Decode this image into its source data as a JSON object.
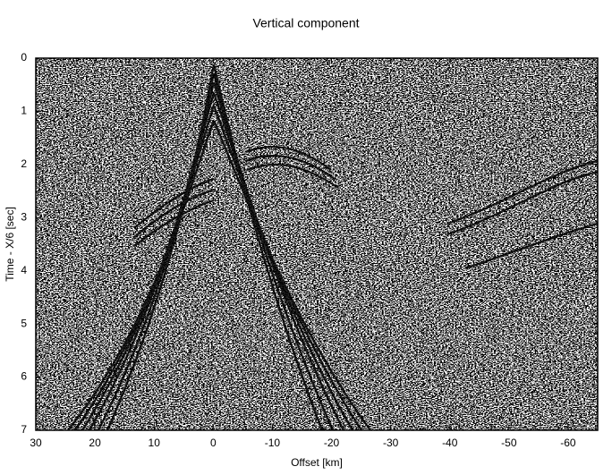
{
  "chart_data": {
    "type": "seismic-section",
    "title": "Vertical component",
    "x_label": "Offset [km]",
    "y_label": "Time - X/6 [sec]",
    "xlim": [
      30,
      -65
    ],
    "xticks": [
      30,
      20,
      10,
      0,
      -10,
      -20,
      -30,
      -40,
      -50,
      -60
    ],
    "ylim": [
      0,
      7
    ],
    "yticks": [
      0,
      1,
      2,
      3,
      4,
      5,
      6,
      7
    ],
    "y_inverted": true
  }
}
